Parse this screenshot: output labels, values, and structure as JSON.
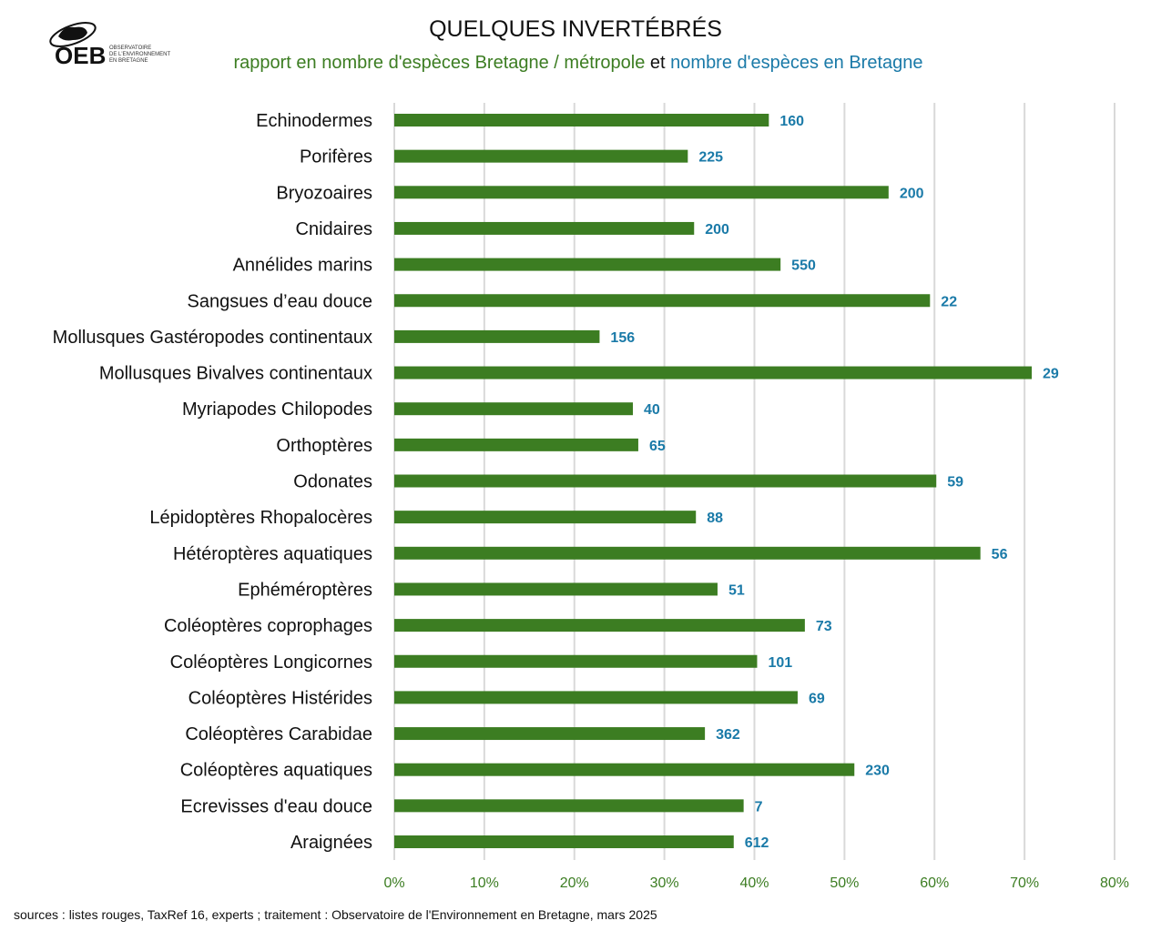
{
  "header": {
    "logo_text": "OEB OBSERVATOIRE DE L'ENVIRONNEMENT EN BRETAGNE",
    "title": "QUELQUES INVERTÉBRÉS",
    "subtitle_part1": "rapport en nombre d'espèces Bretagne / métropole",
    "subtitle_join": " et ",
    "subtitle_part2": "nombre d'espèces en Bretagne"
  },
  "footer": {
    "source": "sources : listes rouges, TaxRef 16, experts ; traitement :  Observatoire de l'Environnement en Bretagne, mars 2025"
  },
  "chart_data": {
    "type": "bar",
    "orientation": "horizontal",
    "title": "QUELQUES INVERTÉBRÉS",
    "xlim": [
      0,
      80
    ],
    "x_ticks": [
      "0%",
      "10%",
      "20%",
      "30%",
      "40%",
      "50%",
      "60%",
      "70%",
      "80%"
    ],
    "grid": "vertical",
    "colors": {
      "bar": "#3c7d22",
      "data_label": "#1a7aa8",
      "tick": "#3c7d22",
      "grid": "#d9d9d9"
    },
    "categories": [
      "Echinodermes",
      "Porifères",
      "Bryozoaires",
      "Cnidaires",
      "Annélides marins",
      "Sangsues d’eau douce",
      "Mollusques Gastéropodes continentaux",
      "Mollusques Bivalves continentaux",
      "Myriapodes Chilopodes",
      "Orthoptères",
      "Odonates",
      "Lépidoptères Rhopalocères",
      "Hétéroptères aquatiques",
      "Ephéméroptères",
      "Coléoptères coprophages",
      "Coléoptères Longicornes",
      "Coléoptères Histérides",
      "Coléoptères Carabidae",
      "Coléoptères aquatiques",
      "Ecrevisses d'eau douce",
      "Araignées"
    ],
    "series": [
      {
        "values": [
          41.6,
          32.6,
          54.9,
          33.3,
          42.9,
          59.5,
          22.8,
          70.8,
          26.5,
          27.1,
          60.2,
          33.5,
          65.1,
          35.9,
          45.6,
          40.3,
          44.8,
          34.5,
          51.1,
          38.8,
          37.7
        ]
      }
    ],
    "data_labels": [
      "160",
      "225",
      "200",
      "200",
      "550",
      "22",
      "156",
      "29",
      "40",
      "65",
      "59",
      "88",
      "56",
      "51",
      "73",
      "101",
      "69",
      "362",
      "230",
      "7",
      "612"
    ]
  }
}
